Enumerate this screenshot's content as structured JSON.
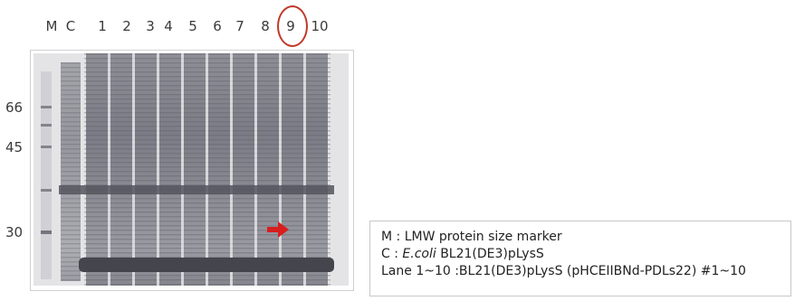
{
  "lane_labels": [
    "M",
    "C",
    "1",
    "2",
    "3",
    "4",
    "5",
    "6",
    "7",
    "8",
    "9",
    "10"
  ],
  "marker_sizes": [
    "66",
    "45",
    "30"
  ],
  "highlighted_lane": "9",
  "legend": {
    "marker_line": "M : LMW protein size marker",
    "control_prefix": "C : ",
    "control_species": "E.coli",
    "control_strain": " BL21(DE3)pLysS",
    "lanes_line": "Lane 1~10 :BL21(DE3)pLysS (pHCEIIBNd-PDLs22) #1~10"
  },
  "colors": {
    "highlight": "#c0392b",
    "arrow": "#d81e1e",
    "gel_background": "#e4e4e6",
    "band_dark": "#4b4b52"
  }
}
